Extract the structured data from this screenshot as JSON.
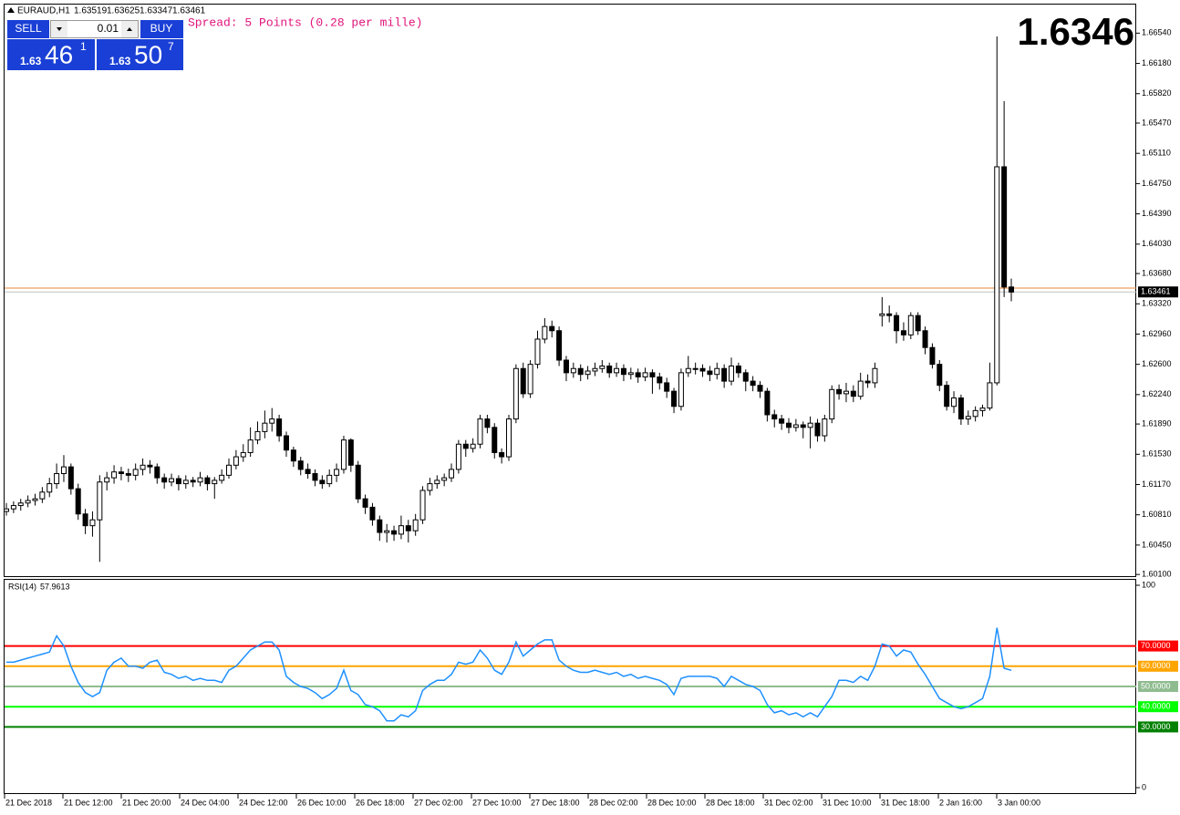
{
  "header": {
    "symbol": "EURAUD,H1",
    "last_ohlc": [
      1.63519,
      1.63625,
      1.63347,
      1.63461
    ],
    "spread": "Spread: 5 Points (0.28 per mille)",
    "big_price": 1.6346,
    "sell": "SELL",
    "buy": "BUY",
    "lot": 0.01,
    "sell_price": [
      "1.63",
      "46",
      "1"
    ],
    "buy_price": [
      "1.63",
      "50",
      "7"
    ]
  },
  "chart_data": [
    {
      "type": "candlestick",
      "bid": 1.63461,
      "ask": 1.63507,
      "bid_color": "#c0c0c0",
      "ask_color": "#e8873a",
      "ylim": [
        1.6008,
        1.6688
      ],
      "yticks": [
        {
          "value": 1.6654,
          "label": "1.66540"
        },
        {
          "value": 1.6618,
          "label": "1.66180"
        },
        {
          "value": 1.6582,
          "label": "1.65820"
        },
        {
          "value": 1.6547,
          "label": "1.65470"
        },
        {
          "value": 1.6511,
          "label": "1.65110"
        },
        {
          "value": 1.6475,
          "label": "1.64750"
        },
        {
          "value": 1.6439,
          "label": "1.64390"
        },
        {
          "value": 1.6403,
          "label": "1.64030"
        },
        {
          "value": 1.6368,
          "label": "1.63680"
        },
        {
          "value": 1.6332,
          "label": "1.63320"
        },
        {
          "value": 1.6296,
          "label": "1.62960"
        },
        {
          "value": 1.626,
          "label": "1.62600"
        },
        {
          "value": 1.6224,
          "label": "1.62240"
        },
        {
          "value": 1.6189,
          "label": "1.61890"
        },
        {
          "value": 1.6153,
          "label": "1.61530"
        },
        {
          "value": 1.6117,
          "label": "1.61170"
        },
        {
          "value": 1.6081,
          "label": "1.60810"
        },
        {
          "value": 1.6045,
          "label": "1.60450"
        },
        {
          "value": 1.601,
          "label": "1.60100"
        }
      ],
      "xlabels": [
        "21 Dec 2018",
        "21 Dec 12:00",
        "21 Dec 20:00",
        "24 Dec 04:00",
        "24 Dec 12:00",
        "26 Dec 10:00",
        "26 Dec 18:00",
        "27 Dec 02:00",
        "27 Dec 10:00",
        "27 Dec 18:00",
        "28 Dec 02:00",
        "28 Dec 10:00",
        "28 Dec 18:00",
        "31 Dec 02:00",
        "31 Dec 10:00",
        "31 Dec 18:00",
        "2 Jan 16:00",
        "3 Jan 00:00"
      ],
      "ohlc": [
        [
          1.6085,
          1.6095,
          1.608,
          1.6088
        ],
        [
          1.6088,
          1.6097,
          1.6083,
          1.6092
        ],
        [
          1.6092,
          1.61,
          1.6086,
          1.6095
        ],
        [
          1.6095,
          1.6104,
          1.609,
          1.6098
        ],
        [
          1.6098,
          1.6106,
          1.6092,
          1.61
        ],
        [
          1.61,
          1.6114,
          1.6095,
          1.6108
        ],
        [
          1.6108,
          1.6125,
          1.6102,
          1.6118
        ],
        [
          1.6118,
          1.6142,
          1.6112,
          1.613
        ],
        [
          1.613,
          1.6152,
          1.612,
          1.6138
        ],
        [
          1.6138,
          1.6142,
          1.6105,
          1.6112
        ],
        [
          1.6112,
          1.6118,
          1.6075,
          1.6082
        ],
        [
          1.6082,
          1.6088,
          1.6058,
          1.6068
        ],
        [
          1.6068,
          1.6085,
          1.6055,
          1.6075
        ],
        [
          1.6075,
          1.6128,
          1.6025,
          1.612
        ],
        [
          1.612,
          1.6132,
          1.611,
          1.6125
        ],
        [
          1.6125,
          1.614,
          1.6118,
          1.6132
        ],
        [
          1.6132,
          1.6138,
          1.6122,
          1.613
        ],
        [
          1.613,
          1.6136,
          1.612,
          1.6128
        ],
        [
          1.6128,
          1.6142,
          1.6122,
          1.6135
        ],
        [
          1.6135,
          1.6148,
          1.6128,
          1.614
        ],
        [
          1.614,
          1.6146,
          1.613,
          1.6138
        ],
        [
          1.6138,
          1.6142,
          1.6118,
          1.6125
        ],
        [
          1.6125,
          1.613,
          1.6112,
          1.612
        ],
        [
          1.612,
          1.613,
          1.6115,
          1.6124
        ],
        [
          1.6124,
          1.6128,
          1.611,
          1.6118
        ],
        [
          1.6118,
          1.6128,
          1.6112,
          1.6122
        ],
        [
          1.6122,
          1.6126,
          1.6114,
          1.612
        ],
        [
          1.612,
          1.6132,
          1.6115,
          1.6125
        ],
        [
          1.6125,
          1.6128,
          1.611,
          1.6118
        ],
        [
          1.6118,
          1.6126,
          1.61,
          1.6122
        ],
        [
          1.6122,
          1.6135,
          1.6118,
          1.6128
        ],
        [
          1.6128,
          1.6148,
          1.6124,
          1.614
        ],
        [
          1.614,
          1.6158,
          1.6135,
          1.615
        ],
        [
          1.615,
          1.6165,
          1.6144,
          1.6155
        ],
        [
          1.6155,
          1.6185,
          1.615,
          1.617
        ],
        [
          1.617,
          1.6192,
          1.6165,
          1.618
        ],
        [
          1.618,
          1.6205,
          1.6172,
          1.619
        ],
        [
          1.619,
          1.6208,
          1.618,
          1.6195
        ],
        [
          1.6195,
          1.62,
          1.6168,
          1.6175
        ],
        [
          1.6175,
          1.618,
          1.615,
          1.6158
        ],
        [
          1.6158,
          1.6162,
          1.6138,
          1.6145
        ],
        [
          1.6145,
          1.615,
          1.6128,
          1.6135
        ],
        [
          1.6135,
          1.6142,
          1.6124,
          1.613
        ],
        [
          1.613,
          1.6135,
          1.6115,
          1.6122
        ],
        [
          1.6122,
          1.6128,
          1.6112,
          1.6118
        ],
        [
          1.6118,
          1.6135,
          1.6114,
          1.6128
        ],
        [
          1.6128,
          1.6142,
          1.612,
          1.6135
        ],
        [
          1.6135,
          1.6175,
          1.613,
          1.617
        ],
        [
          1.617,
          1.6172,
          1.6132,
          1.614
        ],
        [
          1.614,
          1.6145,
          1.6095,
          1.61
        ],
        [
          1.61,
          1.6105,
          1.6082,
          1.609
        ],
        [
          1.609,
          1.6095,
          1.6068,
          1.6075
        ],
        [
          1.6075,
          1.608,
          1.605,
          1.606
        ],
        [
          1.606,
          1.607,
          1.6048,
          1.6062
        ],
        [
          1.6062,
          1.6068,
          1.605,
          1.6058
        ],
        [
          1.6058,
          1.608,
          1.6052,
          1.6068
        ],
        [
          1.6068,
          1.6075,
          1.6048,
          1.6062
        ],
        [
          1.6062,
          1.6082,
          1.6056,
          1.6075
        ],
        [
          1.6075,
          1.6115,
          1.607,
          1.611
        ],
        [
          1.611,
          1.6125,
          1.6104,
          1.6118
        ],
        [
          1.6118,
          1.6128,
          1.6112,
          1.6122
        ],
        [
          1.6122,
          1.613,
          1.6115,
          1.6125
        ],
        [
          1.6125,
          1.6142,
          1.612,
          1.6135
        ],
        [
          1.6135,
          1.617,
          1.613,
          1.6165
        ],
        [
          1.6165,
          1.617,
          1.615,
          1.616
        ],
        [
          1.616,
          1.6172,
          1.6155,
          1.6165
        ],
        [
          1.6165,
          1.62,
          1.616,
          1.6195
        ],
        [
          1.6195,
          1.62,
          1.6178,
          1.6185
        ],
        [
          1.6185,
          1.619,
          1.6148,
          1.6155
        ],
        [
          1.6155,
          1.616,
          1.6142,
          1.615
        ],
        [
          1.615,
          1.62,
          1.6145,
          1.6195
        ],
        [
          1.6195,
          1.626,
          1.619,
          1.6255
        ],
        [
          1.6255,
          1.6262,
          1.622,
          1.6225
        ],
        [
          1.6225,
          1.6265,
          1.622,
          1.626
        ],
        [
          1.626,
          1.63,
          1.6255,
          1.629
        ],
        [
          1.629,
          1.6315,
          1.6285,
          1.6305
        ],
        [
          1.6305,
          1.6312,
          1.6292,
          1.63
        ],
        [
          1.63,
          1.6305,
          1.6258,
          1.6265
        ],
        [
          1.6265,
          1.627,
          1.624,
          1.625
        ],
        [
          1.625,
          1.6262,
          1.6244,
          1.6255
        ],
        [
          1.6255,
          1.626,
          1.624,
          1.6248
        ],
        [
          1.6248,
          1.6258,
          1.6242,
          1.6252
        ],
        [
          1.6252,
          1.6262,
          1.6246,
          1.6255
        ],
        [
          1.6255,
          1.6265,
          1.625,
          1.6258
        ],
        [
          1.6258,
          1.6262,
          1.6244,
          1.625
        ],
        [
          1.625,
          1.6262,
          1.6245,
          1.6255
        ],
        [
          1.6255,
          1.626,
          1.624,
          1.6248
        ],
        [
          1.6248,
          1.6256,
          1.6242,
          1.625
        ],
        [
          1.625,
          1.6255,
          1.6238,
          1.6245
        ],
        [
          1.6245,
          1.6256,
          1.624,
          1.625
        ],
        [
          1.625,
          1.6254,
          1.6225,
          1.6245
        ],
        [
          1.6245,
          1.625,
          1.623,
          1.6238
        ],
        [
          1.6238,
          1.6244,
          1.622,
          1.6228
        ],
        [
          1.6228,
          1.6232,
          1.6202,
          1.621
        ],
        [
          1.621,
          1.6255,
          1.6205,
          1.625
        ],
        [
          1.625,
          1.627,
          1.6245,
          1.6255
        ],
        [
          1.6255,
          1.6262,
          1.6248,
          1.6255
        ],
        [
          1.6255,
          1.626,
          1.6245,
          1.6252
        ],
        [
          1.6252,
          1.6258,
          1.624,
          1.6248
        ],
        [
          1.6248,
          1.6262,
          1.6242,
          1.6255
        ],
        [
          1.6255,
          1.626,
          1.6232,
          1.624
        ],
        [
          1.624,
          1.6268,
          1.6235,
          1.6258
        ],
        [
          1.6258,
          1.6262,
          1.6244,
          1.625
        ],
        [
          1.625,
          1.6254,
          1.6228,
          1.624
        ],
        [
          1.624,
          1.6246,
          1.6228,
          1.6235
        ],
        [
          1.6235,
          1.624,
          1.622,
          1.6228
        ],
        [
          1.6228,
          1.6232,
          1.6192,
          1.62
        ],
        [
          1.62,
          1.6206,
          1.6185,
          1.6195
        ],
        [
          1.6195,
          1.62,
          1.6182,
          1.619
        ],
        [
          1.619,
          1.6196,
          1.6178,
          1.6185
        ],
        [
          1.6185,
          1.6195,
          1.618,
          1.6188
        ],
        [
          1.6188,
          1.6192,
          1.6172,
          1.6185
        ],
        [
          1.6185,
          1.6198,
          1.616,
          1.619
        ],
        [
          1.619,
          1.6195,
          1.6168,
          1.6175
        ],
        [
          1.6175,
          1.62,
          1.6168,
          1.6195
        ],
        [
          1.6195,
          1.6235,
          1.619,
          1.623
        ],
        [
          1.623,
          1.6236,
          1.6218,
          1.6225
        ],
        [
          1.6225,
          1.6238,
          1.6215,
          1.6228
        ],
        [
          1.6228,
          1.6235,
          1.6215,
          1.6222
        ],
        [
          1.6222,
          1.625,
          1.6218,
          1.624
        ],
        [
          1.624,
          1.6248,
          1.6232,
          1.6238
        ],
        [
          1.6238,
          1.6262,
          1.6232,
          1.6255
        ],
        [
          1.6318,
          1.634,
          1.6305,
          1.632
        ],
        [
          1.632,
          1.633,
          1.631,
          1.6318
        ],
        [
          1.6318,
          1.6322,
          1.6285,
          1.63
        ],
        [
          1.63,
          1.631,
          1.6288,
          1.6295
        ],
        [
          1.6295,
          1.6322,
          1.629,
          1.6318
        ],
        [
          1.6318,
          1.6322,
          1.6295,
          1.63
        ],
        [
          1.63,
          1.6305,
          1.6272,
          1.628
        ],
        [
          1.628,
          1.6285,
          1.6255,
          1.626
        ],
        [
          1.626,
          1.6265,
          1.6228,
          1.6235
        ],
        [
          1.6235,
          1.624,
          1.6205,
          1.621
        ],
        [
          1.621,
          1.6228,
          1.6202,
          1.622
        ],
        [
          1.622,
          1.6224,
          1.6188,
          1.6195
        ],
        [
          1.6195,
          1.6205,
          1.6188,
          1.6198
        ],
        [
          1.6198,
          1.621,
          1.6192,
          1.6205
        ],
        [
          1.6205,
          1.6212,
          1.6198,
          1.6208
        ],
        [
          1.6208,
          1.6262,
          1.6205,
          1.6238
        ],
        [
          1.6238,
          1.665,
          1.6235,
          1.6495
        ],
        [
          1.6495,
          1.6573,
          1.634,
          1.6352
        ],
        [
          1.6352,
          1.6362,
          1.6335,
          1.6346
        ]
      ]
    },
    {
      "type": "line",
      "name": "RSI(14)",
      "color": "#1e90ff",
      "ylim": [
        0,
        100
      ],
      "yticks": [
        0,
        100
      ],
      "levels": [
        {
          "value": 70,
          "label": "70.0000",
          "color": "#ff0000"
        },
        {
          "value": 60,
          "label": "60.0000",
          "color": "#ffa500"
        },
        {
          "value": 50,
          "label": "50.0000",
          "color": "#8fbc8f"
        },
        {
          "value": 40,
          "label": "40.0000",
          "color": "#00ff00"
        },
        {
          "value": 30,
          "label": "30.0000",
          "color": "#008000"
        }
      ],
      "values": [
        62,
        62,
        63,
        64,
        65,
        66,
        67,
        75,
        70,
        60,
        52,
        47,
        45,
        47,
        58,
        62,
        64,
        60,
        60,
        59,
        62,
        63,
        57,
        56,
        54,
        55,
        53,
        54,
        53,
        53,
        52,
        58,
        60,
        64,
        68,
        70,
        72,
        72,
        68,
        55,
        52,
        50,
        49,
        47,
        44,
        46,
        49,
        58,
        48,
        46,
        41,
        40,
        38,
        33,
        33,
        36,
        35,
        38,
        48,
        51,
        53,
        53,
        56,
        62,
        61,
        62,
        68,
        64,
        58,
        56,
        62,
        72,
        65,
        68,
        71,
        73,
        73,
        63,
        60,
        58,
        57,
        57,
        58,
        57,
        56,
        57,
        55,
        56,
        54,
        55,
        54,
        53,
        51,
        46,
        54,
        55,
        55,
        55,
        55,
        54,
        50,
        55,
        53,
        51,
        50,
        48,
        41,
        37,
        38,
        36,
        37,
        35,
        37,
        35,
        40,
        45,
        53,
        53,
        52,
        55,
        53,
        60,
        71,
        70,
        65,
        68,
        67,
        61,
        56,
        50,
        44,
        42,
        40,
        39,
        40,
        42,
        44,
        55,
        79,
        59,
        57.9613
      ]
    }
  ]
}
